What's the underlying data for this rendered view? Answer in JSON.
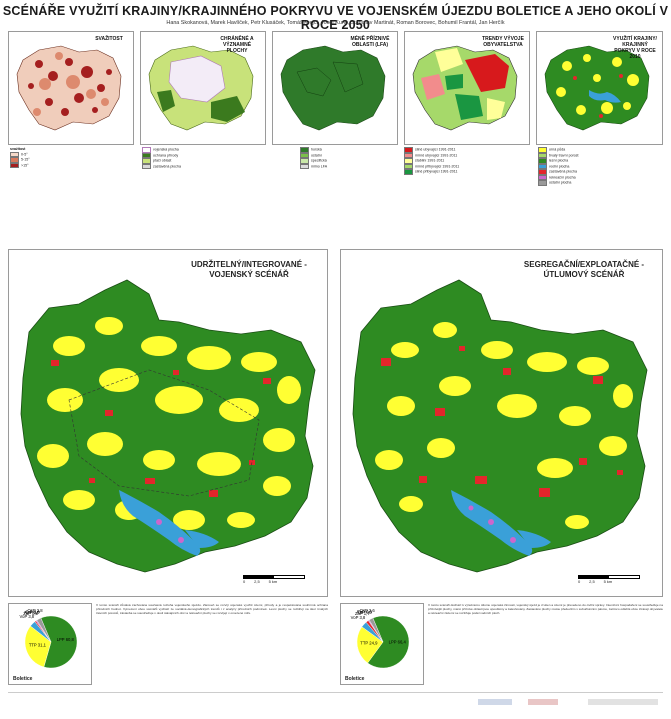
{
  "title": "SCÉNÁŘE VYUŽITÍ KRAJINY/KRAJINNÉHO POKRYVU VE VOJENSKÉM ÚJEZDU BOLETICE A JEHO OKOLÍ V ROCE 2050",
  "authors": "Hana Skokanová, Marek Havlíček, Petr Klusáček, Tomáš Krejčí, Josef Kunc, Stanislav Martinát, Roman Borovec, Bohumil Frantál, Jan Herčík",
  "small_maps": [
    {
      "title": "SVAŽITOST",
      "legend_title": "svažitost",
      "legend": [
        {
          "label": "0-5°",
          "color": "#f5d9c9"
        },
        {
          "label": "5-15°",
          "color": "#d97a5c"
        },
        {
          "label": ">15°",
          "color": "#a51f1f"
        }
      ]
    },
    {
      "title": "CHRÁNĚNÉ A VÝZNAMNÉ PLOCHY",
      "legend": [
        {
          "label": "vojenská plocha",
          "color": "#ffffff"
        },
        {
          "label": "ochrana přírody",
          "color": "#3b7a1e"
        },
        {
          "label": "ptačí oblast",
          "color": "#c8e27a"
        },
        {
          "label": "zastavěná plocha",
          "color": "#d9d9d9"
        }
      ]
    },
    {
      "title": "MÉNĚ PŘÍZNIVÉ OBLASTI (LFA)",
      "legend": [
        {
          "label": "horská",
          "color": "#2f7a2a"
        },
        {
          "label": "ostatní",
          "color": "#7bbf4a"
        },
        {
          "label": "specifická",
          "color": "#c9e8a8"
        },
        {
          "label": "mimo LFA",
          "color": "#dcdcdc"
        }
      ]
    },
    {
      "title": "TRENDY VÝVOJE OBYVATELSTVA",
      "legend": [
        {
          "label": "silně ubývající 1991-2011",
          "color": "#d7191c"
        },
        {
          "label": "mírně ubývající 1991-2011",
          "color": "#f28c8c"
        },
        {
          "label": "stabilní 1991-2011",
          "color": "#ffff99"
        },
        {
          "label": "mírně přibývající 1991-2011",
          "color": "#a6d96a"
        },
        {
          "label": "silně přibývající 1991-2011",
          "color": "#1a9641"
        }
      ]
    },
    {
      "title": "VYUŽITÍ KRAJINY/ KRAJINNÝ POKRYV V ROCE 2010",
      "legend": [
        {
          "label": "orná půda",
          "color": "#ffff33"
        },
        {
          "label": "trvalý travní porost",
          "color": "#a6d96a"
        },
        {
          "label": "lesní plocha",
          "color": "#2e8b22"
        },
        {
          "label": "vodní plocha",
          "color": "#3aa0d8"
        },
        {
          "label": "zastavěná plocha",
          "color": "#e3262b"
        },
        {
          "label": "rekreační plocha",
          "color": "#cc66cc"
        },
        {
          "label": "ostatní plocha",
          "color": "#9a9a9a"
        }
      ]
    }
  ],
  "big_maps": [
    {
      "title_line1": "UDRŽITELNÝ/INTEGROVANÉ -",
      "title_line2": "VOJENSKÝ SCÉNÁŘ"
    },
    {
      "title_line1": "SEGREGAČNÍ/EXPLOATAČNÉ -",
      "title_line2": "ÚTLUMOVÝ SCÉNÁŘ"
    }
  ],
  "scale_labels": [
    "0",
    "2,5",
    "5 km"
  ],
  "pie_name": "Boletice",
  "pies": [
    {
      "slices": [
        {
          "label": "LPP",
          "value": 60.8,
          "color": "#2e8b22"
        },
        {
          "label": "TTP",
          "value": 31.1,
          "color": "#ffff33"
        },
        {
          "label": "VoP",
          "value": 3.8,
          "color": "#3aa0d8"
        },
        {
          "label": "ZaP",
          "value": 0.8,
          "color": "#e3262b"
        },
        {
          "label": "ReP",
          "value": 0.7,
          "color": "#cc66cc"
        },
        {
          "label": "OrP",
          "value": 0.0,
          "color": "#a6d96a"
        },
        {
          "label": "OsP",
          "value": 2.8,
          "color": "#9a9a9a"
        }
      ]
    },
    {
      "slices": [
        {
          "label": "LPP",
          "value": 66.4,
          "color": "#2e8b22"
        },
        {
          "label": "TTP",
          "value": 24.9,
          "color": "#ffff33"
        },
        {
          "label": "VoP",
          "value": 3.8,
          "color": "#3aa0d8"
        },
        {
          "label": "ZaP",
          "value": 1.7,
          "color": "#e3262b"
        },
        {
          "label": "ReP",
          "value": 0.6,
          "color": "#cc66cc"
        },
        {
          "label": "OrP",
          "value": 0.0,
          "color": "#a6d96a"
        },
        {
          "label": "OsP",
          "value": 2.6,
          "color": "#9a9a9a"
        }
      ]
    }
  ],
  "texts": [
    "V tomto scénáři zůstává zachována současná rozloha vojenského újezdu. Zároveň se rozvíjí vojenské využití území, přírody a je respektována souhrnná ochrana přírodních hodnot. Vymezení obou scénářů vychází ze sociálně-demografických trendů i z analýzy přírodních podmínek. Lesní plochy se rozšiřují na úkor trvalých travních porostů, zástavba se soustřeďuje v okolí stávajících obcí a rekreační plochy se rozvíjejí v omezené míře.",
    "V tomto scénáři dochází k výraznému útlumu vojenské činnosti, vojenský újezd je zrušen a území je převedeno do civilní správy. Intenzivní hospodaření se soustřeďuje na příznivější plochy, méně příznivé oblasti jsou opouštěny a zalesňovány. Zastavěné plochy rostou především v suburbánním pásmu, zatímco odlehlé obce ztrácejí obyvatele a rekreační zázemí se rozšiřuje podél vodních ploch."
  ]
}
